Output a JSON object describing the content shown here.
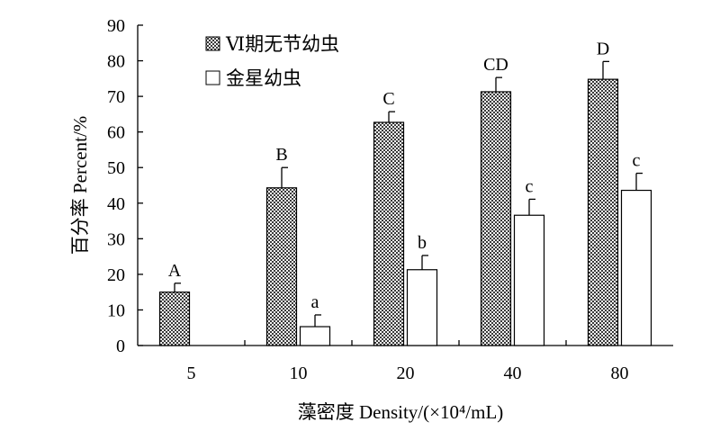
{
  "chart_data": {
    "type": "bar",
    "categories": [
      "5",
      "10",
      "20",
      "40",
      "80"
    ],
    "xlabel": "藻密度 Density/(×10⁴/mL)",
    "ylabel": "百分率 Percent/%",
    "ylim": [
      0,
      90
    ],
    "yticks": [
      "0",
      "10",
      "20",
      "30",
      "40",
      "50",
      "60",
      "70",
      "80",
      "90"
    ],
    "grid": false,
    "legend_position": "top-left",
    "series": [
      {
        "name": "Ⅵ期无节幼虫",
        "fill": "checkered",
        "color": "#555555",
        "values": [
          15.0,
          44.3,
          62.7,
          71.3,
          74.8
        ],
        "errors": [
          2.5,
          5.7,
          3.0,
          4.0,
          5.0
        ],
        "labels": [
          "A",
          "B",
          "C",
          "CD",
          "D"
        ]
      },
      {
        "name": "金星幼虫",
        "fill": "white",
        "color": "#ffffff",
        "values": [
          null,
          5.3,
          21.3,
          36.6,
          43.6
        ],
        "errors": [
          null,
          3.3,
          4.0,
          4.5,
          4.8
        ],
        "labels": [
          "",
          "a",
          "b",
          "c",
          "c"
        ]
      }
    ]
  }
}
